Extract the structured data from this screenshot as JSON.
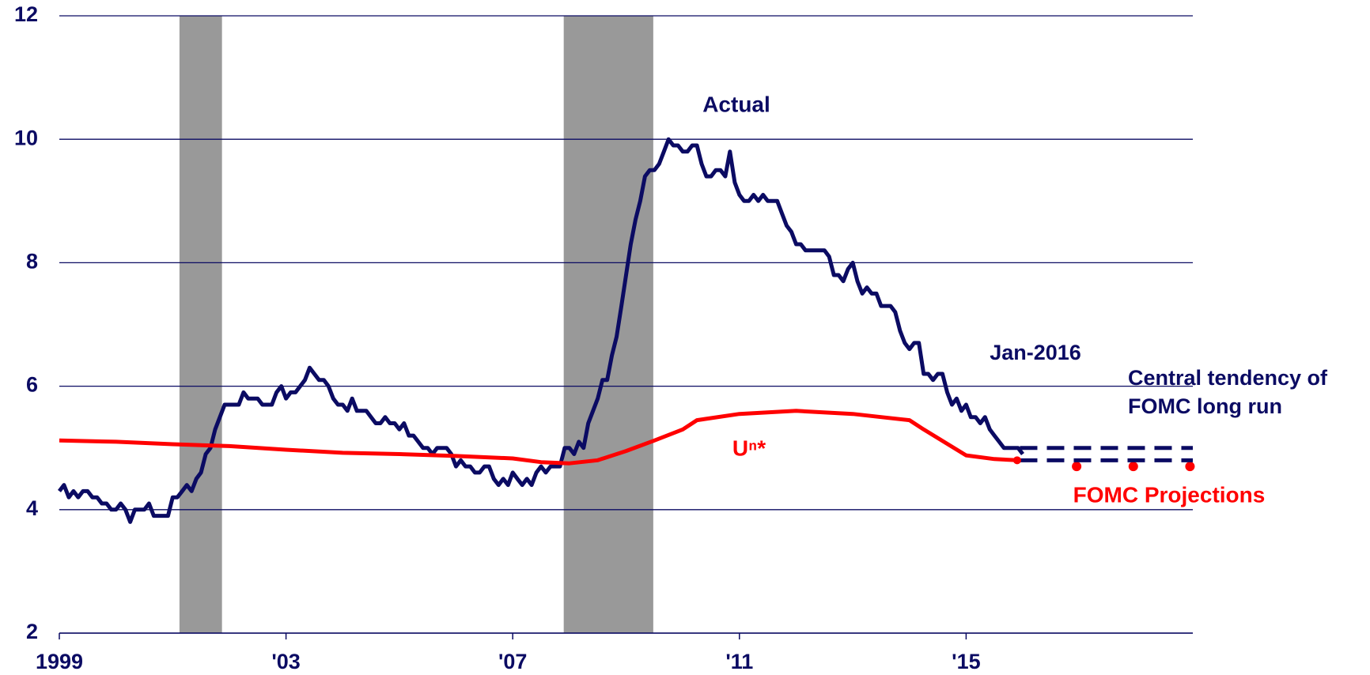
{
  "chart_data": {
    "type": "line",
    "xlim": [
      1999,
      2019
    ],
    "ylim": [
      2,
      12
    ],
    "yticks": [
      2,
      4,
      6,
      8,
      10,
      12
    ],
    "xticks": [
      1999,
      {
        "value": 2003,
        "label": "'03"
      },
      {
        "value": 2007,
        "label": "'07"
      },
      {
        "value": 2011,
        "label": "'11"
      },
      {
        "value": 2015,
        "label": "'15"
      }
    ],
    "grid": true,
    "shaded_periods": [
      {
        "start": 2001.12,
        "end": 2001.87,
        "color": "#999999"
      },
      {
        "start": 2007.9,
        "end": 2009.48,
        "color": "#999999"
      }
    ],
    "annotation": "Jan-2016",
    "series": [
      {
        "name": "Actual",
        "color": "#0b0b63",
        "style": "solid",
        "x": [
          1999,
          1999.083,
          1999.167,
          1999.25,
          1999.333,
          1999.417,
          1999.5,
          1999.583,
          1999.667,
          1999.75,
          1999.833,
          1999.917,
          2000,
          2000.083,
          2000.167,
          2000.25,
          2000.333,
          2000.417,
          2000.5,
          2000.583,
          2000.667,
          2000.75,
          2000.833,
          2000.917,
          2001,
          2001.083,
          2001.167,
          2001.25,
          2001.333,
          2001.417,
          2001.5,
          2001.583,
          2001.667,
          2001.75,
          2001.833,
          2001.917,
          2002,
          2002.083,
          2002.167,
          2002.25,
          2002.333,
          2002.417,
          2002.5,
          2002.583,
          2002.667,
          2002.75,
          2002.833,
          2002.917,
          2003,
          2003.083,
          2003.167,
          2003.25,
          2003.333,
          2003.417,
          2003.5,
          2003.583,
          2003.667,
          2003.75,
          2003.833,
          2003.917,
          2004,
          2004.083,
          2004.167,
          2004.25,
          2004.333,
          2004.417,
          2004.5,
          2004.583,
          2004.667,
          2004.75,
          2004.833,
          2004.917,
          2005,
          2005.083,
          2005.167,
          2005.25,
          2005.333,
          2005.417,
          2005.5,
          2005.583,
          2005.667,
          2005.75,
          2005.833,
          2005.917,
          2006,
          2006.083,
          2006.167,
          2006.25,
          2006.333,
          2006.417,
          2006.5,
          2006.583,
          2006.667,
          2006.75,
          2006.833,
          2006.917,
          2007,
          2007.083,
          2007.167,
          2007.25,
          2007.333,
          2007.417,
          2007.5,
          2007.583,
          2007.667,
          2007.75,
          2007.833,
          2007.917,
          2008,
          2008.083,
          2008.167,
          2008.25,
          2008.333,
          2008.417,
          2008.5,
          2008.583,
          2008.667,
          2008.75,
          2008.833,
          2008.917,
          2009,
          2009.083,
          2009.167,
          2009.25,
          2009.333,
          2009.417,
          2009.5,
          2009.583,
          2009.667,
          2009.75,
          2009.833,
          2009.917,
          2010,
          2010.083,
          2010.167,
          2010.25,
          2010.333,
          2010.417,
          2010.5,
          2010.583,
          2010.667,
          2010.75,
          2010.833,
          2010.917,
          2011,
          2011.083,
          2011.167,
          2011.25,
          2011.333,
          2011.417,
          2011.5,
          2011.583,
          2011.667,
          2011.75,
          2011.833,
          2011.917,
          2012,
          2012.083,
          2012.167,
          2012.25,
          2012.333,
          2012.417,
          2012.5,
          2012.583,
          2012.667,
          2012.75,
          2012.833,
          2012.917,
          2013,
          2013.083,
          2013.167,
          2013.25,
          2013.333,
          2013.417,
          2013.5,
          2013.583,
          2013.667,
          2013.75,
          2013.833,
          2013.917,
          2014,
          2014.083,
          2014.167,
          2014.25,
          2014.333,
          2014.417,
          2014.5,
          2014.583,
          2014.667,
          2014.75,
          2014.833,
          2014.917,
          2015,
          2015.083,
          2015.167,
          2015.25,
          2015.333,
          2015.417,
          2015.5,
          2015.583,
          2015.667,
          2015.75,
          2015.833,
          2015.917,
          2016
        ],
        "values": [
          4.3,
          4.4,
          4.2,
          4.3,
          4.2,
          4.3,
          4.3,
          4.2,
          4.2,
          4.1,
          4.1,
          4.0,
          4.0,
          4.1,
          4.0,
          3.8,
          4.0,
          4.0,
          4.0,
          4.1,
          3.9,
          3.9,
          3.9,
          3.9,
          4.2,
          4.2,
          4.3,
          4.4,
          4.3,
          4.5,
          4.6,
          4.9,
          5.0,
          5.3,
          5.5,
          5.7,
          5.7,
          5.7,
          5.7,
          5.9,
          5.8,
          5.8,
          5.8,
          5.7,
          5.7,
          5.7,
          5.9,
          6.0,
          5.8,
          5.9,
          5.9,
          6.0,
          6.1,
          6.3,
          6.2,
          6.1,
          6.1,
          6.0,
          5.8,
          5.7,
          5.7,
          5.6,
          5.8,
          5.6,
          5.6,
          5.6,
          5.5,
          5.4,
          5.4,
          5.5,
          5.4,
          5.4,
          5.3,
          5.4,
          5.2,
          5.2,
          5.1,
          5.0,
          5.0,
          4.9,
          5.0,
          5.0,
          5.0,
          4.9,
          4.7,
          4.8,
          4.7,
          4.7,
          4.6,
          4.6,
          4.7,
          4.7,
          4.5,
          4.4,
          4.5,
          4.4,
          4.6,
          4.5,
          4.4,
          4.5,
          4.4,
          4.6,
          4.7,
          4.6,
          4.7,
          4.7,
          4.7,
          5.0,
          5.0,
          4.9,
          5.1,
          5.0,
          5.4,
          5.6,
          5.8,
          6.1,
          6.1,
          6.5,
          6.8,
          7.3,
          7.8,
          8.3,
          8.7,
          9.0,
          9.4,
          9.5,
          9.5,
          9.6,
          9.8,
          10.0,
          9.9,
          9.9,
          9.8,
          9.8,
          9.9,
          9.9,
          9.6,
          9.4,
          9.4,
          9.5,
          9.5,
          9.4,
          9.8,
          9.3,
          9.1,
          9.0,
          9.0,
          9.1,
          9.0,
          9.1,
          9.0,
          9.0,
          9.0,
          8.8,
          8.6,
          8.5,
          8.3,
          8.3,
          8.2,
          8.2,
          8.2,
          8.2,
          8.2,
          8.1,
          7.8,
          7.8,
          7.7,
          7.9,
          8.0,
          7.7,
          7.5,
          7.6,
          7.5,
          7.5,
          7.3,
          7.3,
          7.3,
          7.2,
          6.9,
          6.7,
          6.6,
          6.7,
          6.7,
          6.2,
          6.2,
          6.1,
          6.2,
          6.2,
          5.9,
          5.7,
          5.8,
          5.6,
          5.7,
          5.5,
          5.5,
          5.4,
          5.5,
          5.3,
          5.2,
          5.1,
          5.0,
          5.0,
          5.0,
          5.0,
          4.9
        ]
      },
      {
        "name": "Uⁿ*",
        "color": "#ff0000",
        "style": "solid",
        "x": [
          1999,
          2000,
          2001,
          2002,
          2003,
          2004,
          2005,
          2006,
          2007,
          2007.5,
          2008,
          2008.5,
          2009,
          2009.5,
          2010,
          2010.25,
          2011,
          2012,
          2013,
          2013.5,
          2014,
          2014.25,
          2015,
          2015.5,
          2015.9
        ],
        "values": [
          5.12,
          5.1,
          5.06,
          5.03,
          4.97,
          4.92,
          4.9,
          4.87,
          4.83,
          4.77,
          4.75,
          4.8,
          4.95,
          5.12,
          5.3,
          5.45,
          5.55,
          5.6,
          5.55,
          5.5,
          5.45,
          5.3,
          4.88,
          4.82,
          4.8
        ]
      },
      {
        "name": "FOMC Projections",
        "color": "#ff0000",
        "style": "points",
        "x": [
          2016.95,
          2017.95,
          2018.95
        ],
        "values": [
          4.7,
          4.7,
          4.7
        ]
      },
      {
        "name": "Central tendency of FOMC long run",
        "color": "#0b0b63",
        "style": "dashed-levels",
        "xrange": [
          2015.95,
          2019
        ],
        "values": [
          5.0,
          4.8
        ]
      }
    ]
  }
}
